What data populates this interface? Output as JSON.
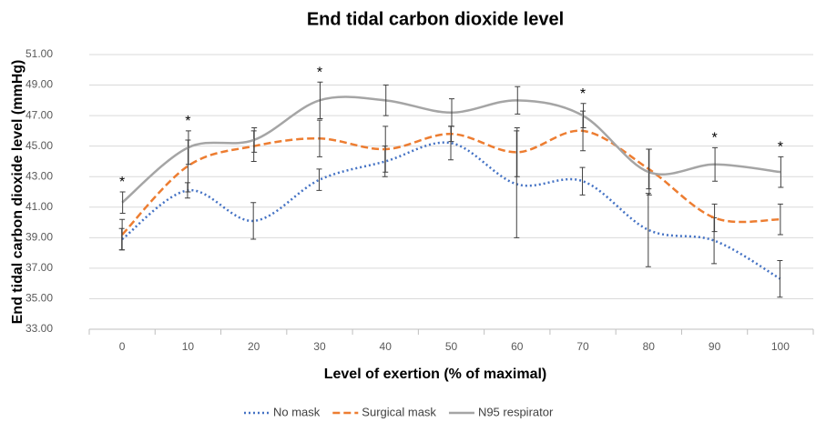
{
  "chart_data": {
    "type": "line",
    "title": "End tidal carbon dioxide level",
    "x_label": "Level of exertion (% of maximal)",
    "y_label": "End tidal carbon dioxide level (mmHg)",
    "categories": [
      "0",
      "10",
      "20",
      "30",
      "40",
      "50",
      "60",
      "70",
      "80",
      "90",
      "100"
    ],
    "series": [
      {
        "name": "No mask",
        "color": "#4472c4",
        "dash": "dotted",
        "values": [
          38.9,
          42.1,
          40.1,
          42.8,
          44.0,
          45.2,
          42.5,
          42.7,
          39.5,
          38.8,
          36.3
        ],
        "errors": [
          0.7,
          0.5,
          1.2,
          0.7,
          1.0,
          1.1,
          3.5,
          0.9,
          2.4,
          1.5,
          1.2
        ]
      },
      {
        "name": "Surgical mask",
        "color": "#ed7d31",
        "dash": "dashed",
        "values": [
          39.2,
          43.7,
          45.0,
          45.5,
          44.8,
          45.8,
          44.6,
          46.0,
          43.5,
          40.3,
          40.2
        ],
        "errors": [
          1.0,
          1.7,
          1.0,
          1.2,
          1.5,
          0.5,
          1.6,
          1.3,
          1.3,
          0.9,
          1.0
        ]
      },
      {
        "name": "N95 respirator",
        "color": "#a5a5a5",
        "dash": "solid",
        "values": [
          41.3,
          44.9,
          45.4,
          48.0,
          48.0,
          47.2,
          48.0,
          47.0,
          43.3,
          43.8,
          43.3
        ],
        "errors": [
          0.7,
          1.1,
          0.8,
          1.2,
          1.0,
          0.9,
          0.9,
          0.8,
          1.5,
          1.1,
          1.0
        ]
      }
    ],
    "significance": [
      "*",
      "*",
      null,
      "*",
      null,
      null,
      null,
      "*",
      null,
      "*",
      "*"
    ],
    "ylim": [
      33,
      51
    ],
    "yticks": [
      {
        "value": 33,
        "label": "33.00"
      },
      {
        "value": 35,
        "label": "35.00"
      },
      {
        "value": 37,
        "label": "37.00"
      },
      {
        "value": 39,
        "label": "39.00"
      },
      {
        "value": 41,
        "label": "41.00"
      },
      {
        "value": 43,
        "label": "43.00"
      },
      {
        "value": 45,
        "label": "45.00"
      },
      {
        "value": 47,
        "label": "47.00"
      },
      {
        "value": 49,
        "label": "49.00"
      },
      {
        "value": 51,
        "label": "51.00"
      }
    ],
    "grid": true,
    "legend": "bottom"
  }
}
